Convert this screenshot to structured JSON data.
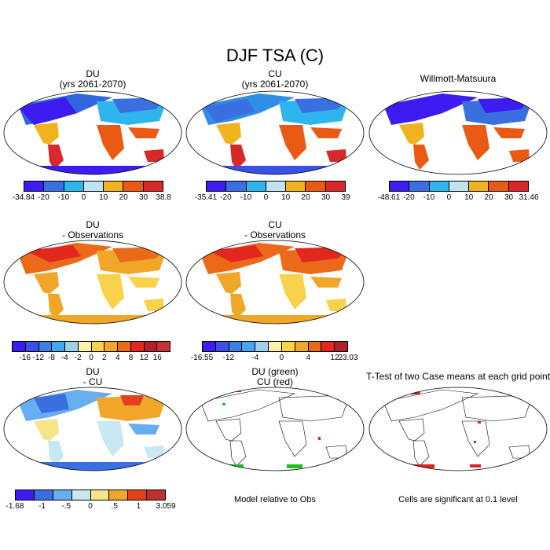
{
  "title": "DJF TSA (C)",
  "panels": {
    "du": {
      "title1": "DU",
      "title2": "(yrs 2061-2070)",
      "ticks": [
        "-34.84",
        "-20",
        "-10",
        "0",
        "10",
        "20",
        "30",
        "38.8"
      ]
    },
    "cu": {
      "title1": "CU",
      "title2": "(yrs 2061-2070)",
      "ticks": [
        "-35.41",
        "-20",
        "-10",
        "0",
        "10",
        "20",
        "30",
        "39"
      ]
    },
    "wm": {
      "title1": "Willmott-Matsuura",
      "ticks": [
        "-48.61",
        "-20",
        "-10",
        "0",
        "10",
        "20",
        "30",
        "31.46"
      ]
    },
    "du_obs": {
      "title1": "DU",
      "title2": "- Observations",
      "ticks": [
        "-16",
        "-12",
        "-8",
        "-4",
        "-2",
        "0",
        "2",
        "4",
        "8",
        "12",
        "16"
      ]
    },
    "cu_obs": {
      "title1": "CU",
      "title2": "- Observations",
      "ticks": [
        "-16.55",
        "-12",
        "-4",
        "0",
        "4",
        "12",
        "23.03"
      ]
    },
    "du_cu": {
      "title1": "DU",
      "title2": "- CU",
      "ticks": [
        "-1.68",
        "-1",
        "-.5",
        "0",
        ".5",
        "1",
        "3.059"
      ]
    },
    "sig": {
      "title1": "DU (green)",
      "title2": "CU (red)",
      "note": "Model relative to Obs"
    },
    "ttest": {
      "title1": "T-Test of two Case means at each grid point",
      "note": "Cells are significant at 0.1 level"
    }
  },
  "colors": {
    "abs_scale": [
      "#3c1cf0",
      "#3a6fe0",
      "#2fb5ee",
      "#bfe3f0",
      "#f0b21e",
      "#eb5a14",
      "#d8282a",
      "#b42832"
    ],
    "diff_scale": [
      "#3c1cf0",
      "#3a50e6",
      "#3a7fe6",
      "#43a6ef",
      "#9fd1ec",
      "#fff1a8",
      "#f7d24a",
      "#f0a628",
      "#ea6a1a",
      "#e2281e",
      "#b41e28",
      "#c83232"
    ],
    "small_scale": [
      "#3c1cf0",
      "#3a6fe0",
      "#66aef0",
      "#c9e8f2",
      "#f6e58a",
      "#f0a628",
      "#e4401c",
      "#c03030"
    ],
    "ocean": "#ffffff",
    "land_outline": "#000000"
  }
}
